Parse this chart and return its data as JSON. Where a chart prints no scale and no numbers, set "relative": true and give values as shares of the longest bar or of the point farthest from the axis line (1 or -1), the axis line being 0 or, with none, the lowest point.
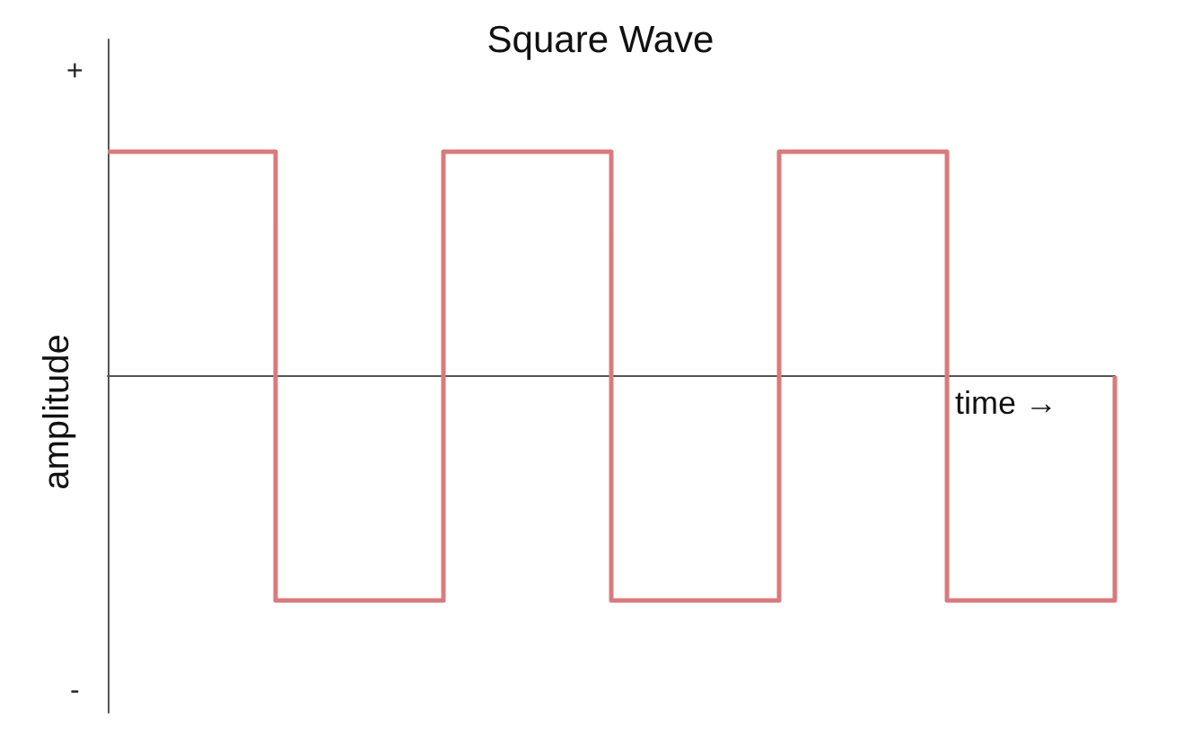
{
  "chart_data": {
    "type": "step",
    "title": "Square Wave",
    "xlabel": "time →",
    "ylabel": "amplitude",
    "categories": [
      null,
      null,
      null,
      null,
      null,
      null,
      null
    ],
    "values": [
      1,
      -1,
      1,
      -1,
      1,
      -1,
      0
    ],
    "color": "#d97a7d",
    "relative": true,
    "annotations": [
      "+",
      "-"
    ],
    "marker": "none",
    "grid": false
  }
}
